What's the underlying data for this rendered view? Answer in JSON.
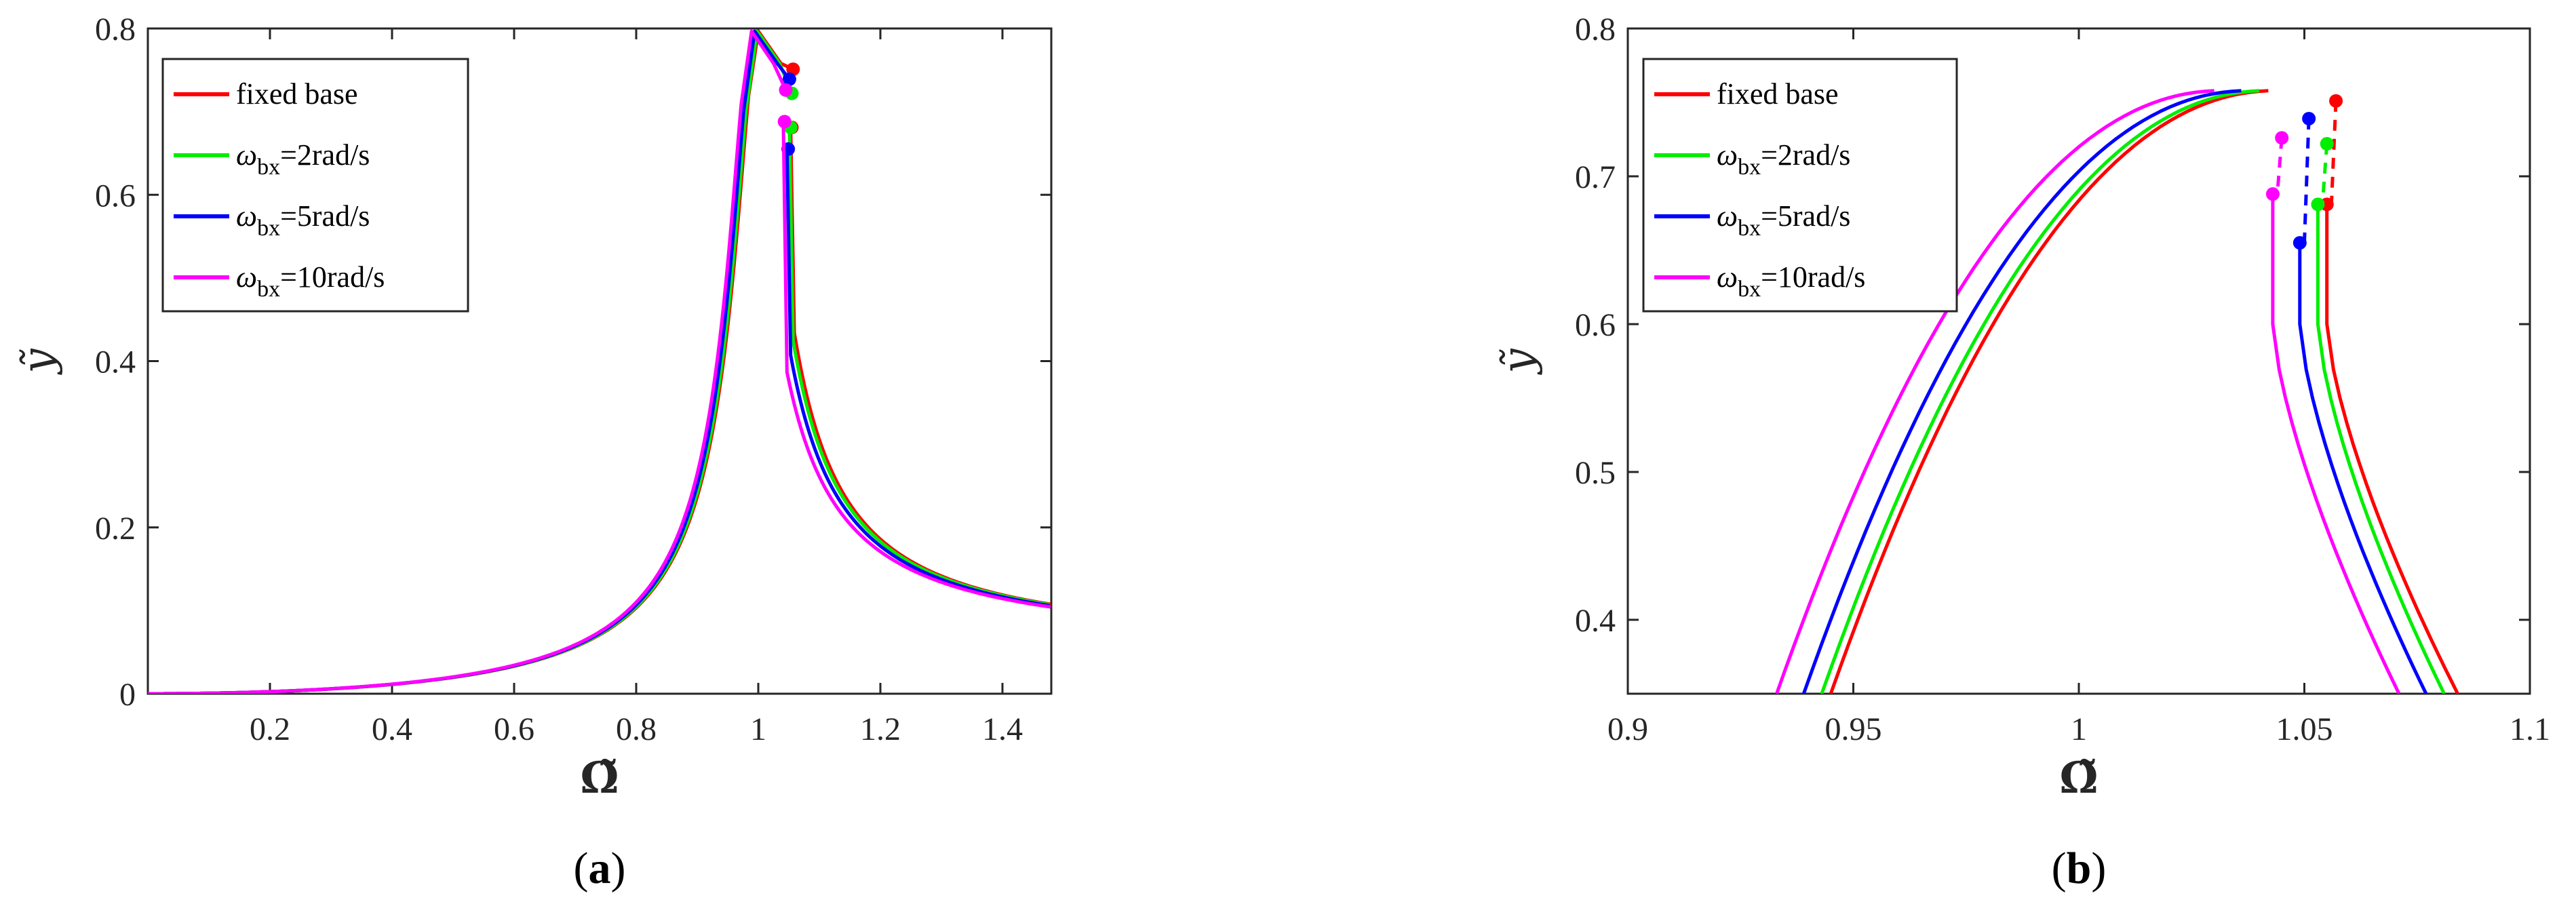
{
  "chart_data": [
    {
      "type": "line",
      "panel_label": "(a)",
      "panel_letter": "a",
      "xlabel": "Ω̃",
      "ylabel": "ỹ",
      "xlim": [
        0,
        1.48
      ],
      "ylim": [
        0,
        0.8
      ],
      "xticks": [
        0.2,
        0.4,
        0.6,
        0.8,
        1,
        1.2,
        1.4
      ],
      "xtick_labels": [
        "0.2",
        "0.4",
        "0.6",
        "0.8",
        "1",
        "1.2",
        "1.4"
      ],
      "yticks": [
        0,
        0.2,
        0.4,
        0.6,
        0.8
      ],
      "ytick_labels": [
        "0",
        "0.2",
        "0.4",
        "0.6",
        "0.8"
      ],
      "legend_position": "top-left",
      "series": [
        {
          "name": "fixed base",
          "color": "#ff0000",
          "wn": 1.0,
          "frac": 0.9,
          "jumpx": 1.057,
          "hi": 0.751,
          "lo": 0.681
        },
        {
          "name": "ω_bx=2rad/s",
          "legend": {
            "base": "ω",
            "sub": "bx",
            "rest": "=2rad/s"
          },
          "color": "#00ee00",
          "wn": 0.998,
          "frac": 0.9,
          "jumpx": 1.055,
          "hi": 0.722,
          "lo": 0.681
        },
        {
          "name": "ω_bx=5rad/s",
          "legend": {
            "base": "ω",
            "sub": "bx",
            "rest": "=5rad/s"
          },
          "color": "#0000ff",
          "wn": 0.994,
          "frac": 0.9,
          "jumpx": 1.051,
          "hi": 0.739,
          "lo": 0.655
        },
        {
          "name": "ω_bx=10rad/s",
          "legend": {
            "base": "ω",
            "sub": "bx",
            "rest": "=10rad/s"
          },
          "color": "#ff00ff",
          "wn": 0.989,
          "frac": 0.9,
          "jumpx": 1.045,
          "hi": 0.726,
          "lo": 0.688
        }
      ]
    },
    {
      "type": "line",
      "panel_label": "(b)",
      "panel_letter": "b",
      "xlabel": "Ω̃",
      "ylabel": "ỹ",
      "xlim": [
        0.9,
        1.1
      ],
      "ylim": [
        0.35,
        0.8
      ],
      "xticks": [
        0.9,
        0.95,
        1,
        1.05,
        1.1
      ],
      "xtick_labels": [
        "0.9",
        "0.95",
        "1",
        "1.05",
        "1.1"
      ],
      "yticks": [
        0.4,
        0.5,
        0.6,
        0.7,
        0.8
      ],
      "ytick_labels": [
        "0.4",
        "0.5",
        "0.6",
        "0.7",
        "0.8"
      ],
      "legend_position": "top-left",
      "series": [
        {
          "name": "fixed base",
          "color": "#ff0000",
          "x0": 0.945,
          "jumpx": 1.057,
          "end": 1.082,
          "hi": 0.751,
          "lo": 0.681
        },
        {
          "name": "ω_bx=2rad/s",
          "legend": {
            "base": "ω",
            "sub": "bx",
            "rest": "=2rad/s"
          },
          "color": "#00ee00",
          "x0": 0.943,
          "jumpx": 1.055,
          "end": 1.079,
          "hi": 0.722,
          "lo": 0.681
        },
        {
          "name": "ω_bx=5rad/s",
          "legend": {
            "base": "ω",
            "sub": "bx",
            "rest": "=5rad/s"
          },
          "color": "#0000ff",
          "x0": 0.939,
          "jumpx": 1.051,
          "end": 1.075,
          "hi": 0.739,
          "lo": 0.655
        },
        {
          "name": "ω_bx=10rad/s",
          "legend": {
            "base": "ω",
            "sub": "bx",
            "rest": "=10rad/s"
          },
          "color": "#ff00ff",
          "x0": 0.933,
          "jumpx": 1.045,
          "end": 1.069,
          "hi": 0.726,
          "lo": 0.688
        }
      ]
    }
  ]
}
